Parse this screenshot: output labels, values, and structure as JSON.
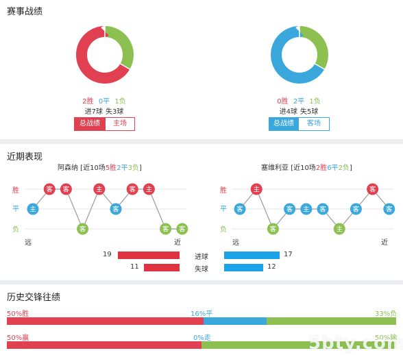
{
  "colors": {
    "win": "#e04050",
    "draw": "#3aa8dc",
    "loss": "#8cc152"
  },
  "season": {
    "title": "赛事战绩",
    "home": {
      "wins": 2,
      "draws": 0,
      "losses": 1,
      "win_text": "2胜",
      "draw_text": "0平",
      "loss_text": "1负",
      "goals_text": "进7球",
      "conceded_text": "失3球",
      "btn_total": "总战绩",
      "btn_side": "主场"
    },
    "away": {
      "wins": 0,
      "draws": 2,
      "losses": 1,
      "win_text": "0胜",
      "draw_text": "2平",
      "loss_text": "1负",
      "goals_text": "进4球",
      "conceded_text": "失5球",
      "btn_total": "总战绩",
      "btn_side": "客场"
    }
  },
  "recent": {
    "title": "近期表现",
    "y_labels": {
      "win": "胜",
      "draw": "平",
      "loss": "负"
    },
    "axis_far": "远",
    "axis_near": "近",
    "home": {
      "name": "阿森纳",
      "summary_prefix": " [近10场",
      "summary_w": "5胜",
      "summary_d": "2平",
      "summary_l": "3负",
      "summary_suffix": "]",
      "results": [
        "D",
        "W",
        "W",
        "L",
        "W",
        "D",
        "W",
        "W",
        "L",
        "L"
      ],
      "venue": [
        "主",
        "客",
        "客",
        "客",
        "主",
        "客",
        "客",
        "主",
        "客",
        "客"
      ]
    },
    "away": {
      "name": "塞维利亚",
      "summary_prefix": " [近10场",
      "summary_w": "2胜",
      "summary_d": "6平",
      "summary_l": "2负",
      "summary_suffix": "]",
      "results": [
        "D",
        "W",
        "L",
        "D",
        "D",
        "D",
        "L",
        "D",
        "W",
        "D"
      ],
      "venue": [
        "客",
        "主",
        "客",
        "客",
        "主",
        "客",
        "主",
        "客",
        "客",
        "客"
      ]
    },
    "goals_label": "进球",
    "conceded_label": "失球",
    "home_goals": 19,
    "home_conceded": 11,
    "away_goals": 17,
    "away_conceded": 12,
    "bar_max": 20
  },
  "history": {
    "title": "历史交锋往绩",
    "row1": {
      "left": "50%胜",
      "mid": "16%平",
      "right": "33%负",
      "w": 50,
      "d": 16,
      "l": 33
    },
    "row2": {
      "left": "50%赢",
      "mid": "0%走",
      "right": "50%输",
      "w": 50,
      "d": 0,
      "l": 50
    }
  },
  "watermark": "5bty.com"
}
